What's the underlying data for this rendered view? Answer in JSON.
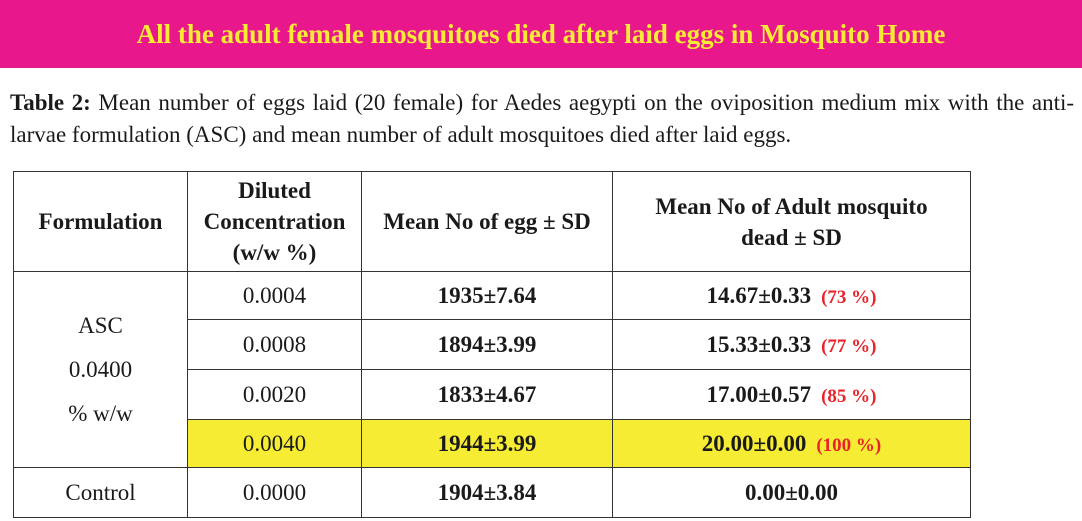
{
  "banner": {
    "text": "All the adult female mosquitoes died after laid eggs in Mosquito Home"
  },
  "caption": {
    "label": "Table 2:",
    "text": " Mean number of eggs laid (20 female) for Aedes aegypti on the oviposition medium mix with the anti-larvae formulation (ASC) and mean number of adult mosquitoes died after laid eggs."
  },
  "table": {
    "headers": {
      "formulation": "Formulation",
      "concentration": [
        "Diluted",
        "Concentration",
        "(w/w %)"
      ],
      "eggs": "Mean No of egg ± SD",
      "dead": [
        "Mean No of Adult mosquito",
        "dead ± SD"
      ]
    },
    "formulation_lines": [
      "ASC",
      "0.0400",
      "% w/w"
    ],
    "rows": [
      {
        "concentration": "0.0004",
        "eggs": "1935±7.64",
        "dead": "14.67±0.33",
        "percent": "(73 %)"
      },
      {
        "concentration": "0.0008",
        "eggs": "1894±3.99",
        "dead": "15.33±0.33",
        "percent": "(77 %)"
      },
      {
        "concentration": "0.0020",
        "eggs": "1833±4.67",
        "dead": "17.00±0.57",
        "percent": "(85 %)"
      },
      {
        "concentration": "0.0040",
        "eggs": "1944±3.99",
        "dead": "20.00±0.00",
        "percent": "(100 %)"
      }
    ],
    "control": {
      "formulation": "Control",
      "concentration": "0.0000",
      "eggs": "1904±3.84",
      "dead": "0.00±0.00"
    }
  },
  "colors": {
    "banner_bg": "#e8188c",
    "banner_text": "#f6ec33",
    "highlight": "#f6ec33",
    "percent_text": "#e8232b"
  }
}
